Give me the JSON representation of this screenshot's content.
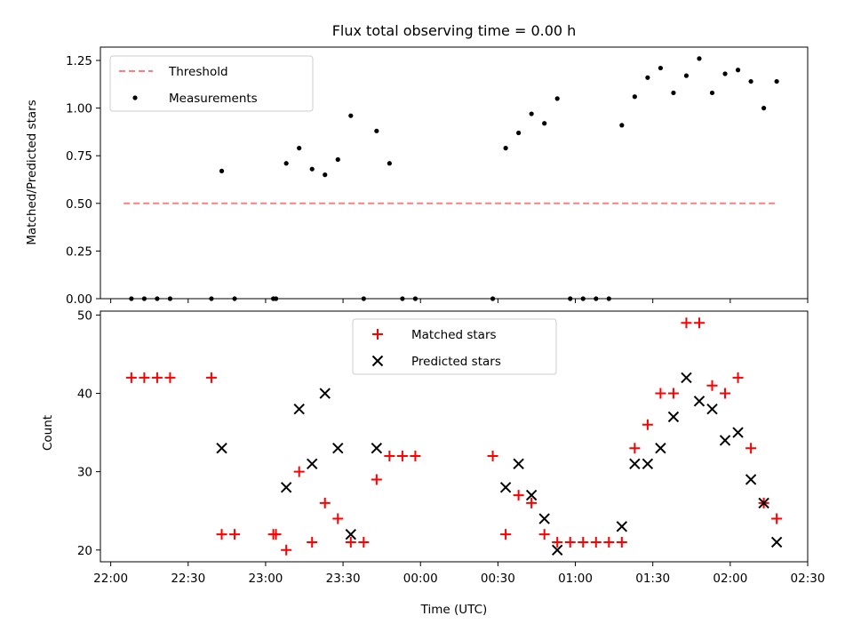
{
  "chart_data": [
    {
      "type": "scatter",
      "title": "Flux total observing time = 0.00 h",
      "xlabel": "",
      "ylabel": "Matched/Predicted stars",
      "xlim": [
        "21:56",
        "02:30"
      ],
      "ylim": [
        0,
        1.32
      ],
      "yticks": [
        "0.00",
        "0.25",
        "0.50",
        "0.75",
        "1.00",
        "1.25"
      ],
      "ytick_values": [
        0,
        0.25,
        0.5,
        0.75,
        1.0,
        1.25
      ],
      "legend": {
        "placement": "top-left",
        "entries": [
          "Threshold",
          "Measurements"
        ]
      },
      "series": [
        {
          "name": "Threshold",
          "kind": "line",
          "style": "dashed",
          "color": "#ff7f7f",
          "x": [
            "22:05",
            "02:18"
          ],
          "y": [
            0.5,
            0.5
          ]
        },
        {
          "name": "Measurements",
          "kind": "points",
          "color": "#000000",
          "x": [
            "22:08",
            "22:13",
            "22:18",
            "22:23",
            "22:39",
            "22:43",
            "22:48",
            "23:03",
            "23:04",
            "23:08",
            "23:13",
            "23:18",
            "23:23",
            "23:28",
            "23:33",
            "23:38",
            "23:43",
            "23:48",
            "23:53",
            "23:58",
            "00:28",
            "00:33",
            "00:38",
            "00:43",
            "00:48",
            "00:53",
            "00:58",
            "01:03",
            "01:08",
            "01:13",
            "01:18",
            "01:23",
            "01:28",
            "01:33",
            "01:38",
            "01:43",
            "01:48",
            "01:53",
            "01:58",
            "02:03",
            "02:08",
            "02:13",
            "02:18"
          ],
          "y": [
            0,
            0,
            0,
            0,
            0,
            0.67,
            0,
            0,
            0,
            0.71,
            0.79,
            0.68,
            0.65,
            0.73,
            0.96,
            0,
            0.88,
            0.71,
            0,
            0,
            0,
            0.79,
            0.87,
            0.97,
            0.92,
            1.05,
            0,
            0,
            0,
            0,
            0.91,
            1.06,
            1.16,
            1.21,
            1.08,
            1.17,
            1.26,
            1.08,
            1.18,
            1.2,
            1.14,
            1.0,
            1.14
          ]
        }
      ]
    },
    {
      "type": "scatter",
      "title": "",
      "xlabel": "Time (UTC)",
      "ylabel": "Count",
      "xlim": [
        "21:56",
        "02:30"
      ],
      "ylim": [
        18.5,
        50.5
      ],
      "yticks": [
        "20",
        "30",
        "40",
        "50"
      ],
      "ytick_values": [
        20,
        30,
        40,
        50
      ],
      "xticks": [
        "22:00",
        "22:30",
        "23:00",
        "23:30",
        "00:00",
        "00:30",
        "01:00",
        "01:30",
        "02:00",
        "02:30"
      ],
      "legend": {
        "placement": "top-center",
        "entries": [
          "Matched stars",
          "Predicted stars"
        ]
      },
      "series": [
        {
          "name": "Matched stars",
          "kind": "plus",
          "color": "#ff0000",
          "x": [
            "22:08",
            "22:13",
            "22:18",
            "22:23",
            "22:39",
            "22:43",
            "22:48",
            "23:03",
            "23:04",
            "23:08",
            "23:13",
            "23:18",
            "23:23",
            "23:28",
            "23:33",
            "23:38",
            "23:43",
            "23:48",
            "23:53",
            "23:58",
            "00:28",
            "00:33",
            "00:38",
            "00:43",
            "00:48",
            "00:53",
            "00:58",
            "01:03",
            "01:08",
            "01:13",
            "01:18",
            "01:23",
            "01:28",
            "01:33",
            "01:38",
            "01:43",
            "01:48",
            "01:53",
            "01:58",
            "02:03",
            "02:08",
            "02:13",
            "02:18"
          ],
          "y": [
            42,
            42,
            42,
            42,
            42,
            22,
            22,
            22,
            22,
            20,
            30,
            21,
            26,
            24,
            21,
            21,
            29,
            32,
            32,
            32,
            32,
            22,
            27,
            26,
            22,
            21,
            21,
            21,
            21,
            21,
            21,
            33,
            36,
            40,
            40,
            49,
            49,
            41,
            40,
            42,
            33,
            26,
            24
          ]
        },
        {
          "name": "Predicted stars",
          "kind": "cross",
          "color": "#000000",
          "x": [
            "22:43",
            "23:08",
            "23:13",
            "23:18",
            "23:23",
            "23:28",
            "23:33",
            "23:43",
            "00:33",
            "00:38",
            "00:43",
            "00:48",
            "00:53",
            "01:18",
            "01:23",
            "01:28",
            "01:33",
            "01:38",
            "01:43",
            "01:48",
            "01:53",
            "01:58",
            "02:03",
            "02:08",
            "02:13",
            "02:18"
          ],
          "y": [
            33,
            28,
            38,
            31,
            40,
            33,
            22,
            33,
            28,
            31,
            27,
            24,
            20,
            23,
            31,
            31,
            33,
            37,
            42,
            39,
            38,
            34,
            35,
            29,
            26,
            21
          ]
        }
      ]
    }
  ]
}
